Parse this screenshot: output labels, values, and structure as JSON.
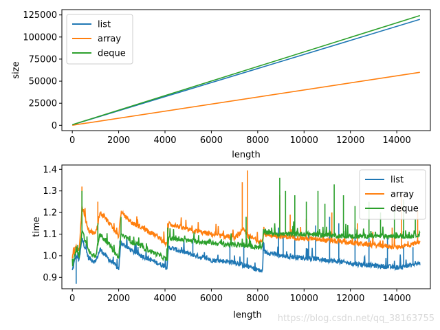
{
  "chart_data": [
    {
      "type": "line",
      "xlabel": "length",
      "ylabel": "size",
      "xlim": [
        -450,
        15450
      ],
      "ylim": [
        -6000,
        131000
      ],
      "xticks": [
        0,
        2000,
        4000,
        6000,
        8000,
        10000,
        12000,
        14000
      ],
      "yticks": [
        0,
        25000,
        50000,
        75000,
        100000,
        125000
      ],
      "legend_position": "top-left",
      "series": [
        {
          "name": "list",
          "color": "#1f77b4",
          "x": [
            0,
            15000
          ],
          "y": [
            600,
            120000
          ]
        },
        {
          "name": "array",
          "color": "#ff7f0e",
          "x": [
            0,
            15000
          ],
          "y": [
            100,
            60000
          ]
        },
        {
          "name": "deque",
          "color": "#2ca02c",
          "x": [
            0,
            15000
          ],
          "y": [
            700,
            124300
          ]
        }
      ]
    },
    {
      "type": "line",
      "xlabel": "length",
      "ylabel": "time",
      "xlim": [
        -450,
        15450
      ],
      "ylim": [
        0.847,
        1.42
      ],
      "xticks": [
        0,
        2000,
        4000,
        6000,
        8000,
        10000,
        12000,
        14000
      ],
      "yticks": [
        0.9,
        1.0,
        1.1,
        1.2,
        1.3,
        1.4
      ],
      "legend_position": "top-right",
      "series": [
        {
          "name": "list",
          "color": "#1f77b4",
          "x": [
            0,
            150,
            300,
            420,
            700,
            1000,
            1200,
            1600,
            2000,
            2100,
            2600,
            3200,
            3800,
            4096,
            4150,
            5000,
            6000,
            7000,
            8000,
            8192,
            8250,
            9000,
            10000,
            11000,
            12000,
            13000,
            14000,
            14500,
            15000
          ],
          "y": [
            0.93,
            1.0,
            0.98,
            1.08,
            0.99,
            0.97,
            1.03,
            0.98,
            0.94,
            1.06,
            1.02,
            0.99,
            0.96,
            0.945,
            1.04,
            1.01,
            0.98,
            0.97,
            0.935,
            0.925,
            1.02,
            1.0,
            0.99,
            0.98,
            0.965,
            0.955,
            0.945,
            0.955,
            0.965
          ],
          "spikes": [
            [
              160,
              0.87
            ],
            [
              240,
              1.04
            ],
            [
              2050,
              1.07
            ],
            [
              4120,
              1.06
            ],
            [
              5200,
              1.08
            ],
            [
              6800,
              1.06
            ],
            [
              7400,
              1.05
            ],
            [
              8230,
              1.06
            ],
            [
              8900,
              1.13
            ],
            [
              9100,
              1.1
            ],
            [
              9600,
              1.12
            ],
            [
              10200,
              1.1
            ],
            [
              10500,
              1.14
            ],
            [
              11100,
              1.18
            ],
            [
              11500,
              1.15
            ],
            [
              12200,
              1.13
            ],
            [
              12800,
              1.1
            ],
            [
              13600,
              1.08
            ],
            [
              14300,
              1.05
            ],
            [
              14700,
              1.04
            ]
          ]
        },
        {
          "name": "array",
          "color": "#ff7f0e",
          "x": [
            0,
            150,
            300,
            420,
            700,
            1000,
            1200,
            1600,
            2000,
            2100,
            2600,
            3200,
            3800,
            4096,
            4150,
            5000,
            6000,
            7000,
            7400,
            7600,
            8000,
            8192,
            8250,
            9000,
            10000,
            11000,
            12000,
            13000,
            14000,
            14600,
            15000
          ],
          "y": [
            0.99,
            1.04,
            1.03,
            1.23,
            1.12,
            1.1,
            1.2,
            1.15,
            1.09,
            1.2,
            1.15,
            1.12,
            1.08,
            1.05,
            1.15,
            1.12,
            1.1,
            1.08,
            1.12,
            1.09,
            1.07,
            1.065,
            1.1,
            1.09,
            1.08,
            1.07,
            1.06,
            1.05,
            1.04,
            1.05,
            1.07
          ],
          "spikes": [
            [
              420,
              1.32
            ],
            [
              1100,
              1.25
            ],
            [
              2120,
              1.2
            ],
            [
              4120,
              1.15
            ],
            [
              7330,
              1.34
            ],
            [
              7570,
              1.395
            ],
            [
              8950,
              1.28
            ],
            [
              9400,
              1.19
            ],
            [
              10100,
              1.17
            ],
            [
              11200,
              1.2
            ],
            [
              12300,
              1.15
            ],
            [
              13800,
              1.13
            ],
            [
              14200,
              1.28
            ],
            [
              14900,
              1.21
            ]
          ]
        },
        {
          "name": "deque",
          "color": "#2ca02c",
          "x": [
            0,
            150,
            300,
            420,
            700,
            1000,
            1200,
            1600,
            2000,
            2100,
            2600,
            3200,
            3800,
            4096,
            4150,
            5000,
            6000,
            7000,
            8000,
            8192,
            8250,
            9000,
            10000,
            11000,
            12000,
            13000,
            14000,
            14600,
            15000
          ],
          "y": [
            0.95,
            1.02,
            1.0,
            1.12,
            1.02,
            1.0,
            1.1,
            1.05,
            0.99,
            1.1,
            1.06,
            1.03,
            1.0,
            0.98,
            1.08,
            1.07,
            1.06,
            1.05,
            1.04,
            1.035,
            1.11,
            1.1,
            1.1,
            1.095,
            1.09,
            1.09,
            1.09,
            1.09,
            1.1
          ],
          "spikes": [
            [
              240,
              1.05
            ],
            [
              420,
              1.3
            ],
            [
              1100,
              1.15
            ],
            [
              2100,
              1.18
            ],
            [
              4120,
              1.13
            ],
            [
              7500,
              1.18
            ],
            [
              8950,
              1.36
            ],
            [
              9200,
              1.3
            ],
            [
              9600,
              1.28
            ],
            [
              10100,
              1.25
            ],
            [
              10600,
              1.3
            ],
            [
              10900,
              1.24
            ],
            [
              11300,
              1.33
            ],
            [
              11700,
              1.28
            ],
            [
              12200,
              1.23
            ],
            [
              12800,
              1.25
            ],
            [
              13300,
              1.2
            ],
            [
              13900,
              1.22
            ],
            [
              14300,
              1.26
            ],
            [
              14800,
              1.17
            ]
          ]
        }
      ]
    }
  ],
  "watermark": "https://blog.csdn.net/qq_38163755"
}
